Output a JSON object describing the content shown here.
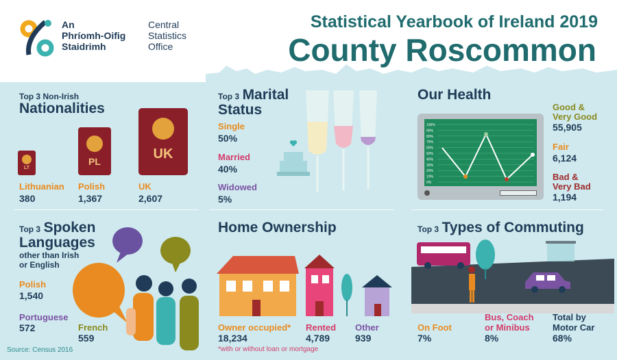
{
  "header": {
    "org_irish_1": "An",
    "org_irish_2": "Phríomh-Oifig",
    "org_irish_3": "Staidrimh",
    "org_en_1": "Central",
    "org_en_2": "Statistics",
    "org_en_3": "Office",
    "title": "Statistical Yearbook of Ireland 2019",
    "county": "County Roscommon"
  },
  "nationalities": {
    "small": "Top 3 Non-Irish",
    "big": "Nationalities",
    "items": [
      {
        "label": "Lithuanian",
        "value": "380",
        "badge": "LT"
      },
      {
        "label": "Polish",
        "value": "1,367",
        "badge": "PL"
      },
      {
        "label": "UK",
        "value": "2,607",
        "badge": "UK"
      }
    ]
  },
  "marital": {
    "small": "Top 3",
    "big1": "Marital",
    "big2": "Status",
    "items": [
      {
        "label": "Single",
        "value": "50%"
      },
      {
        "label": "Married",
        "value": "40%"
      },
      {
        "label": "Widowed",
        "value": "5%"
      }
    ]
  },
  "health": {
    "big": "Our Health",
    "items": [
      {
        "label1": "Good &",
        "label2": "Very Good",
        "value": "55,905"
      },
      {
        "label1": "Fair",
        "label2": "",
        "value": "6,124"
      },
      {
        "label1": "Bad &",
        "label2": "Very Bad",
        "value": "1,194"
      }
    ],
    "ticks": [
      "100%",
      "90%",
      "80%",
      "70%",
      "60%",
      "50%",
      "40%",
      "30%",
      "20%",
      "10%",
      "0%"
    ]
  },
  "languages": {
    "small": "Top 3",
    "big1": "Spoken",
    "big2": "Languages",
    "sub1": "other than Irish",
    "sub2": "or English",
    "items": [
      {
        "label": "Polish",
        "value": "1,540"
      },
      {
        "label": "Portuguese",
        "value": "572"
      },
      {
        "label": "French",
        "value": "559"
      }
    ]
  },
  "ownership": {
    "big": "Home Ownership",
    "items": [
      {
        "label": "Owner occupied*",
        "value": "18,234"
      },
      {
        "label": "Rented",
        "value": "4,789"
      },
      {
        "label": "Other",
        "value": "939"
      }
    ],
    "footnote": "*with or without loan or mortgage"
  },
  "commuting": {
    "small": "Top 3",
    "big": "Types of Commuting",
    "items": [
      {
        "label1": "On Foot",
        "label2": "",
        "value": "7%"
      },
      {
        "label1": "Bus, Coach",
        "label2": "or Minibus",
        "value": "8%"
      },
      {
        "label1": "Total by",
        "label2": "Motor Car",
        "value": "68%"
      }
    ]
  },
  "source": "Source: Census 2016",
  "colors": {
    "teal": "#1f6b6e",
    "navy": "#1f3b57",
    "orange": "#e98b20",
    "pink": "#d43a6a",
    "purple": "#7a53a3",
    "background": "#cfe9ee"
  }
}
